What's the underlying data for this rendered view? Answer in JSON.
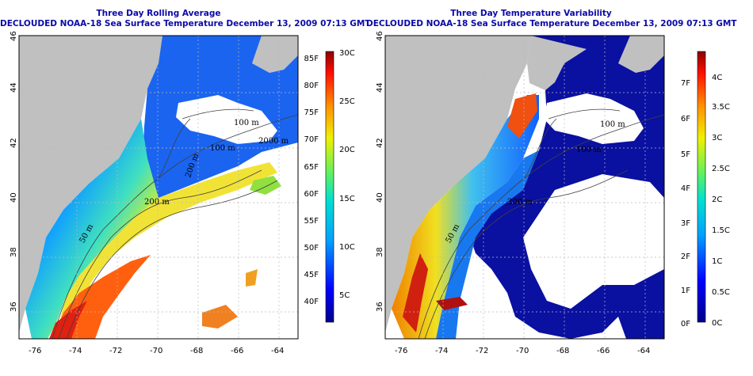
{
  "panels": [
    {
      "title": "Three Day Rolling Average",
      "subtitle": "DECLOUDED NOAA-18 Sea Surface Temperature December 13, 2009 07:13 GMT",
      "lon_ticks": [
        "-76",
        "-74",
        "-72",
        "-70",
        "-68",
        "-66",
        "-64"
      ],
      "lat_ticks": [
        "46",
        "44",
        "42",
        "40",
        "38",
        "36"
      ],
      "contour_labels": [
        "100 m",
        "100 m",
        "2000 m",
        "200 m",
        "200 m",
        "50 m"
      ],
      "colorbar": {
        "fahrenheit": [
          "85F",
          "80F",
          "75F",
          "70F",
          "65F",
          "60F",
          "55F",
          "50F",
          "45F",
          "40F"
        ],
        "celsius": [
          "30C",
          "25C",
          "20C",
          "15C",
          "10C",
          "5C"
        ]
      }
    },
    {
      "title": "Three Day Temperature Variability",
      "subtitle": "DECLOUDED NOAA-18 Sea Surface Temperature December 13, 2009 07:13 GMT",
      "lon_ticks": [
        "-76",
        "-74",
        "-72",
        "-70",
        "-68",
        "-66",
        "-64"
      ],
      "lat_ticks": [
        "46",
        "44",
        "42",
        "40",
        "38",
        "36"
      ],
      "contour_labels": [
        "100 m",
        "100 m",
        "200 m",
        "50 m"
      ],
      "colorbar": {
        "fahrenheit": [
          "7F",
          "6F",
          "5F",
          "4F",
          "3F",
          "2F",
          "1F",
          "0F"
        ],
        "celsius": [
          "4C",
          "3.5C",
          "3C",
          "2.5C",
          "2C",
          "1.5C",
          "1C",
          "0.5C",
          "0C"
        ]
      }
    }
  ],
  "colors": {
    "title": "#0a0aa8",
    "land": "#c0c0c0",
    "cloud": "#ffffff",
    "contour": "#404040"
  }
}
